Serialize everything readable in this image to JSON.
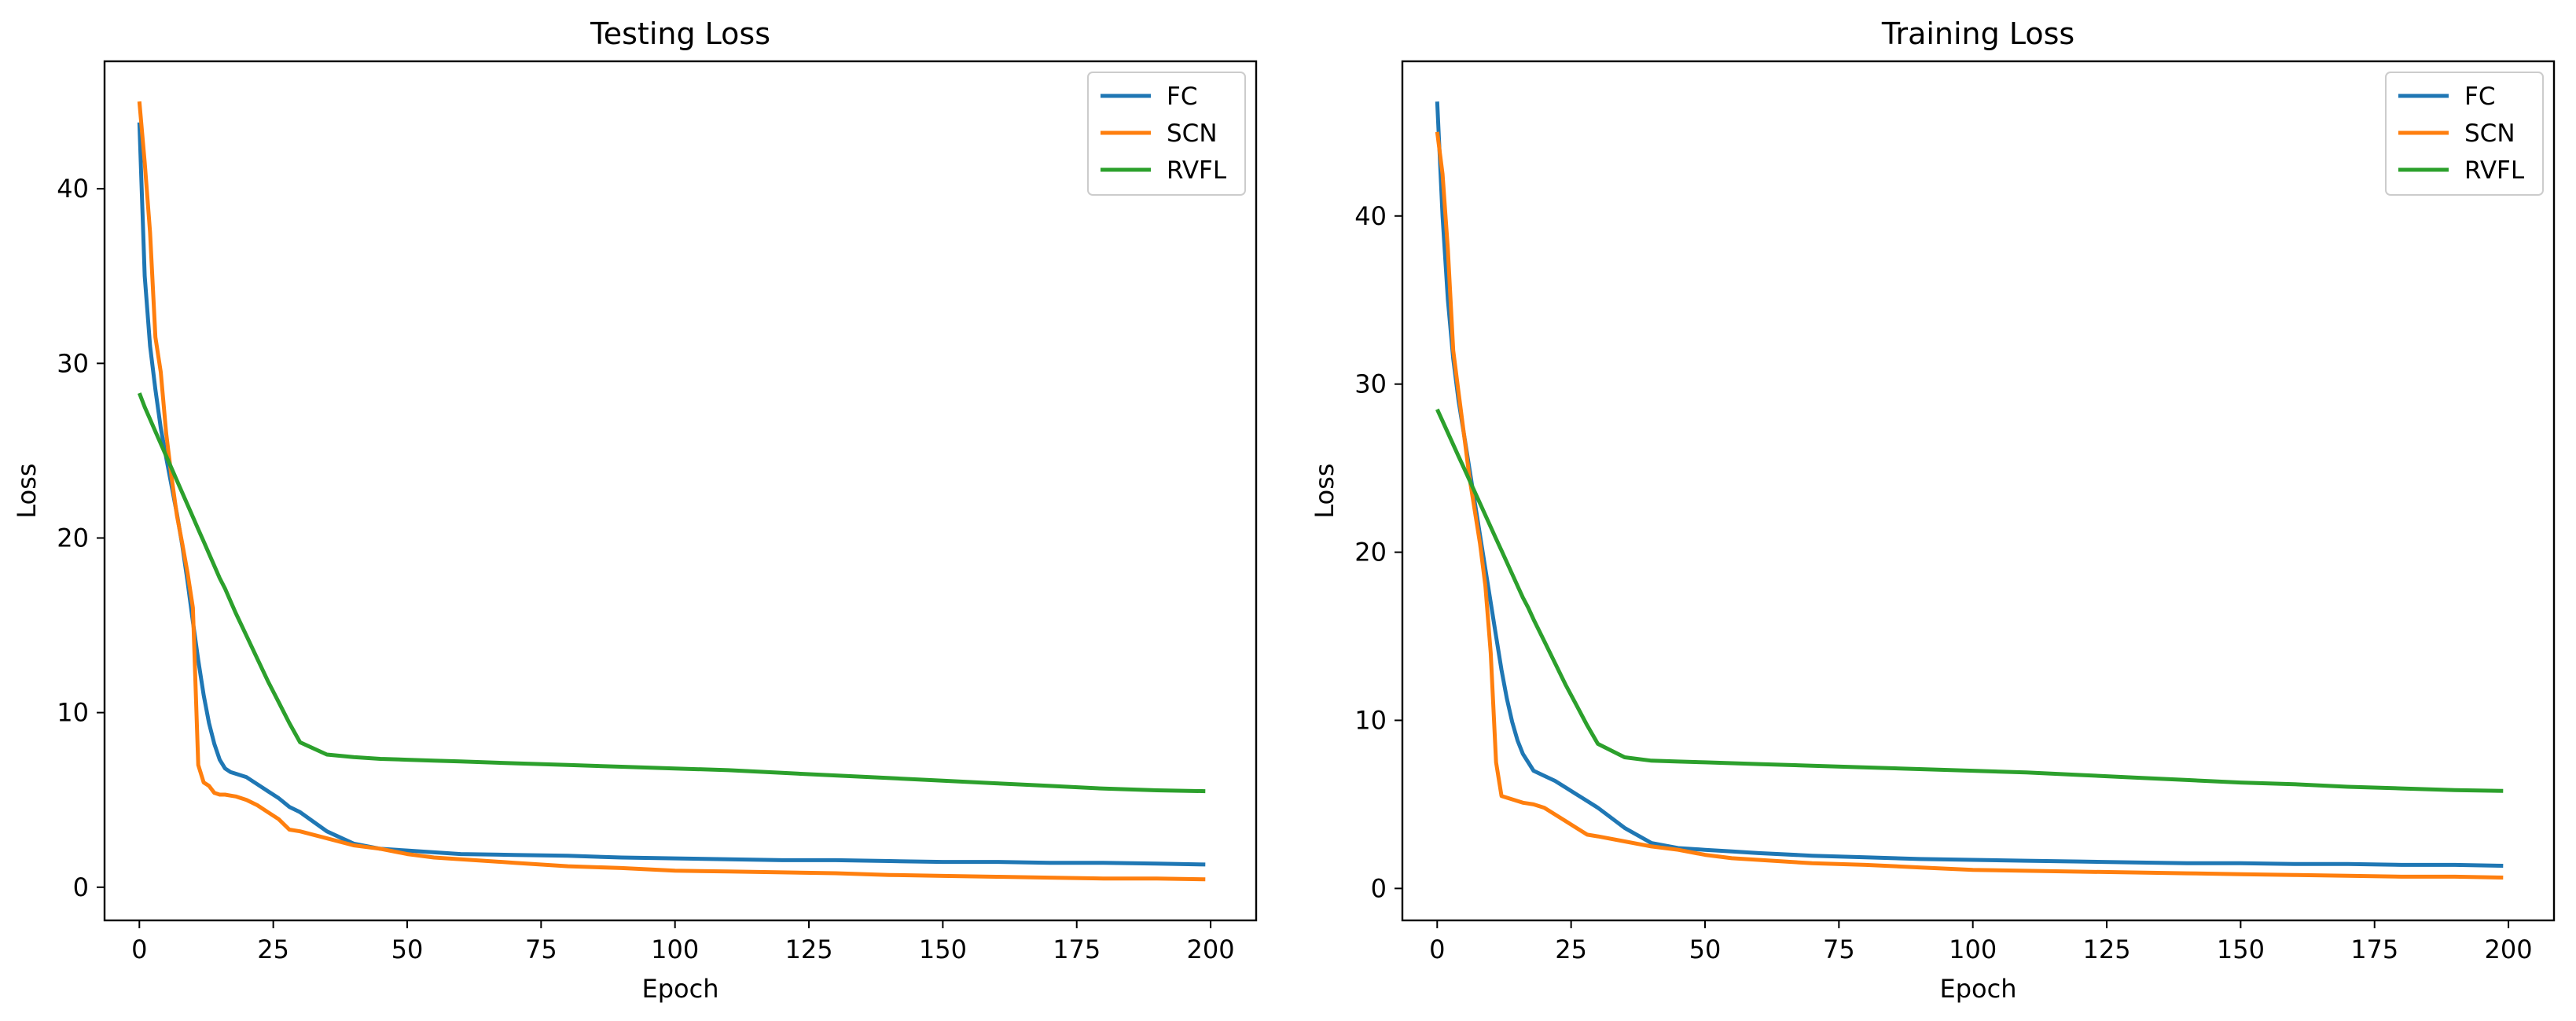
{
  "chart_data": [
    {
      "type": "line",
      "title": "Testing Loss",
      "xlabel": "Epoch",
      "ylabel": "Loss",
      "xlim": [
        -6.5,
        208.5
      ],
      "ylim": [
        -1.9,
        47.3
      ],
      "xticks": [
        0,
        25,
        50,
        75,
        100,
        125,
        150,
        175,
        200
      ],
      "yticks": [
        0,
        10,
        20,
        30,
        40
      ],
      "grid": false,
      "legend_position": "top-right",
      "x": [
        0,
        1,
        2,
        3,
        4,
        5,
        6,
        7,
        8,
        9,
        10,
        11,
        12,
        13,
        14,
        15,
        16,
        17,
        18,
        20,
        22,
        24,
        26,
        28,
        30,
        35,
        40,
        45,
        50,
        55,
        60,
        70,
        80,
        90,
        100,
        110,
        120,
        130,
        140,
        150,
        160,
        170,
        180,
        190,
        199
      ],
      "series": [
        {
          "name": "FC",
          "color": "#1f77b4",
          "values": [
            43.8,
            35.0,
            31.0,
            28.5,
            26.3,
            24.6,
            23.0,
            21.4,
            19.6,
            17.5,
            15.2,
            13.0,
            11.0,
            9.4,
            8.2,
            7.3,
            6.8,
            6.6,
            6.5,
            6.3,
            5.9,
            5.5,
            5.1,
            4.6,
            4.3,
            3.2,
            2.5,
            2.2,
            2.1,
            2.0,
            1.9,
            1.85,
            1.8,
            1.7,
            1.65,
            1.6,
            1.55,
            1.55,
            1.5,
            1.45,
            1.45,
            1.4,
            1.4,
            1.35,
            1.3
          ]
        },
        {
          "name": "SCN",
          "color": "#ff7f0e",
          "values": [
            45.0,
            41.5,
            37.5,
            31.5,
            29.5,
            26.0,
            23.5,
            21.3,
            19.7,
            18.0,
            16.0,
            7.0,
            6.0,
            5.8,
            5.4,
            5.3,
            5.3,
            5.25,
            5.2,
            5.0,
            4.7,
            4.3,
            3.9,
            3.3,
            3.2,
            2.8,
            2.4,
            2.2,
            1.9,
            1.7,
            1.6,
            1.4,
            1.2,
            1.1,
            0.95,
            0.9,
            0.85,
            0.8,
            0.7,
            0.65,
            0.6,
            0.55,
            0.5,
            0.5,
            0.45
          ]
        },
        {
          "name": "RVFL",
          "color": "#2ca02c",
          "values": [
            28.3,
            27.5,
            26.8,
            26.1,
            25.4,
            24.7,
            24.0,
            23.3,
            22.6,
            21.9,
            21.2,
            20.5,
            19.8,
            19.1,
            18.4,
            17.7,
            17.1,
            16.4,
            15.7,
            14.4,
            13.1,
            11.8,
            10.6,
            9.4,
            8.3,
            7.6,
            7.45,
            7.35,
            7.3,
            7.25,
            7.2,
            7.1,
            7.0,
            6.9,
            6.8,
            6.7,
            6.55,
            6.4,
            6.25,
            6.1,
            5.95,
            5.8,
            5.65,
            5.55,
            5.5
          ]
        }
      ]
    },
    {
      "type": "line",
      "title": "Training Loss",
      "xlabel": "Epoch",
      "ylabel": "Loss",
      "xlim": [
        -6.5,
        208.5
      ],
      "ylim": [
        -1.9,
        49.2
      ],
      "xticks": [
        0,
        25,
        50,
        75,
        100,
        125,
        150,
        175,
        200
      ],
      "yticks": [
        0,
        10,
        20,
        30,
        40
      ],
      "grid": false,
      "legend_position": "top-right",
      "x": [
        0,
        1,
        2,
        3,
        4,
        5,
        6,
        7,
        8,
        9,
        10,
        11,
        12,
        13,
        14,
        15,
        16,
        17,
        18,
        20,
        22,
        24,
        26,
        28,
        30,
        35,
        40,
        45,
        50,
        55,
        60,
        70,
        80,
        90,
        100,
        110,
        120,
        130,
        140,
        150,
        160,
        170,
        180,
        190,
        199
      ],
      "series": [
        {
          "name": "FC",
          "color": "#1f77b4",
          "values": [
            46.8,
            40.0,
            35.0,
            31.5,
            29.0,
            27.0,
            25.0,
            23.0,
            21.0,
            19.0,
            17.0,
            15.0,
            13.0,
            11.3,
            9.9,
            8.8,
            8.0,
            7.5,
            7.0,
            6.7,
            6.4,
            6.0,
            5.6,
            5.2,
            4.8,
            3.6,
            2.7,
            2.4,
            2.3,
            2.2,
            2.1,
            1.95,
            1.85,
            1.75,
            1.7,
            1.65,
            1.6,
            1.55,
            1.5,
            1.5,
            1.45,
            1.45,
            1.4,
            1.4,
            1.35
          ]
        },
        {
          "name": "SCN",
          "color": "#ff7f0e",
          "values": [
            45.0,
            42.5,
            38.0,
            32.0,
            29.5,
            27.0,
            24.5,
            22.5,
            20.5,
            18.0,
            14.0,
            7.5,
            5.5,
            5.4,
            5.3,
            5.2,
            5.1,
            5.05,
            5.0,
            4.8,
            4.4,
            4.0,
            3.6,
            3.2,
            3.1,
            2.8,
            2.5,
            2.3,
            2.0,
            1.8,
            1.7,
            1.5,
            1.4,
            1.25,
            1.1,
            1.05,
            1.0,
            0.95,
            0.9,
            0.85,
            0.8,
            0.75,
            0.7,
            0.7,
            0.65
          ]
        },
        {
          "name": "RVFL",
          "color": "#2ca02c",
          "values": [
            28.5,
            27.8,
            27.1,
            26.4,
            25.7,
            25.0,
            24.3,
            23.6,
            22.9,
            22.2,
            21.5,
            20.8,
            20.1,
            19.4,
            18.7,
            18.0,
            17.3,
            16.7,
            16.0,
            14.7,
            13.4,
            12.1,
            10.9,
            9.7,
            8.6,
            7.8,
            7.6,
            7.55,
            7.5,
            7.45,
            7.4,
            7.3,
            7.2,
            7.1,
            7.0,
            6.9,
            6.75,
            6.6,
            6.45,
            6.3,
            6.2,
            6.05,
            5.95,
            5.85,
            5.8
          ]
        }
      ]
    }
  ]
}
